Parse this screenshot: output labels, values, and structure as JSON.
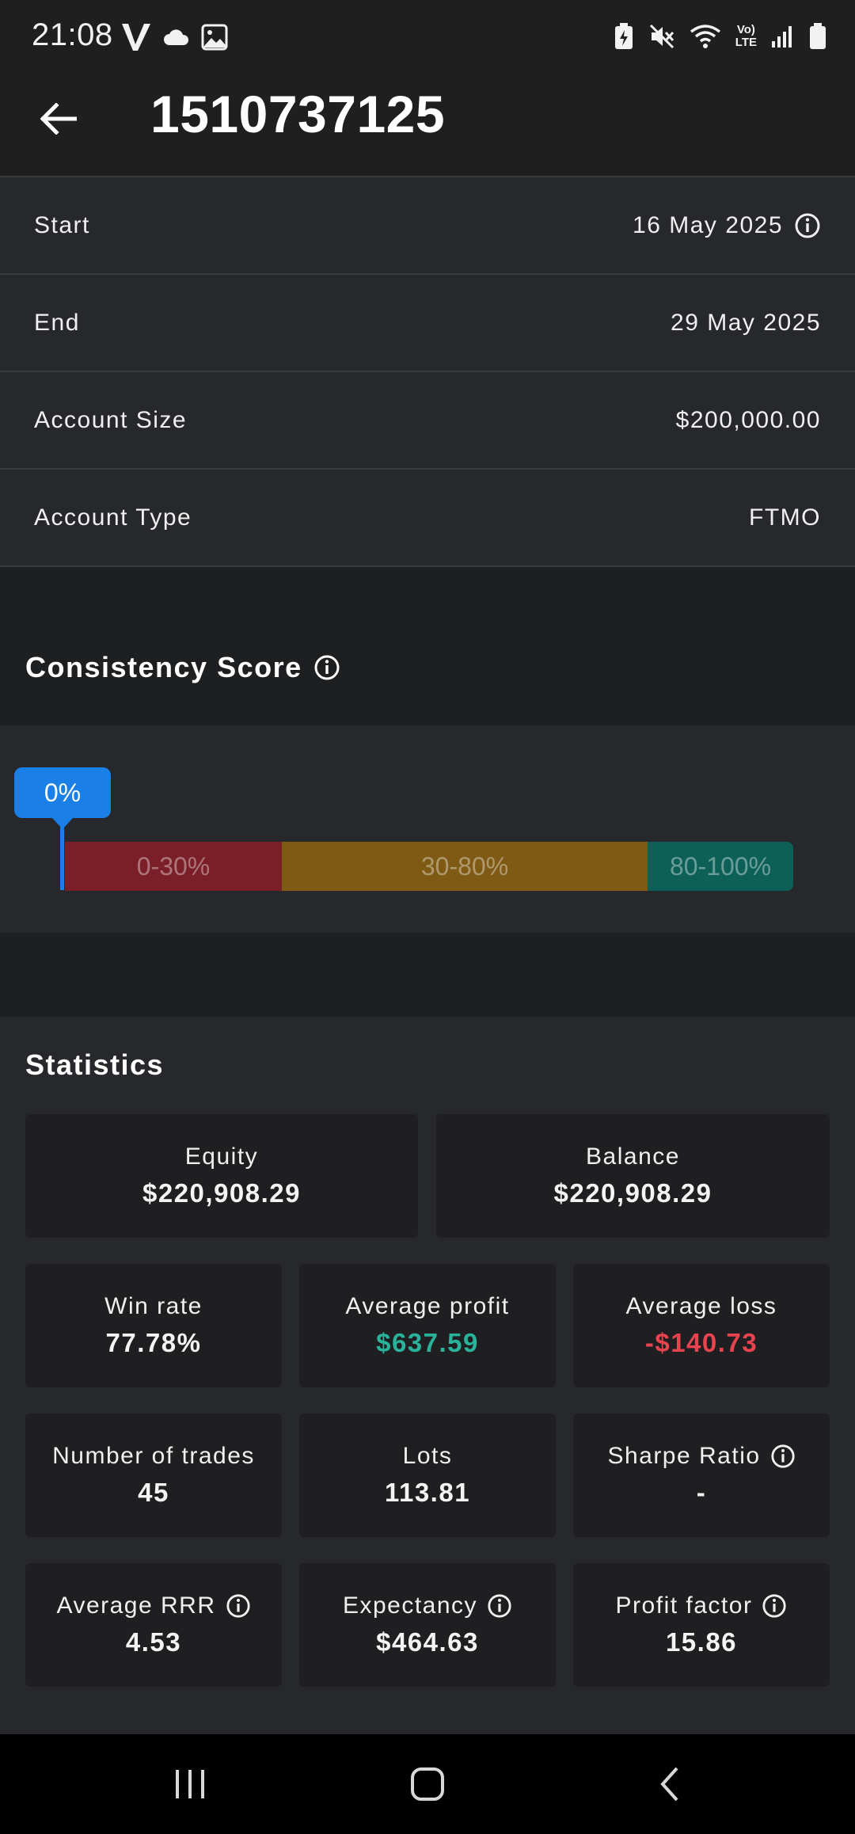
{
  "status_bar": {
    "time": "21:08",
    "volte_top": "Vo)",
    "volte_bottom": "LTE",
    "left_icons": [
      "v-app-icon",
      "cloud-icon",
      "gallery-icon"
    ],
    "right_icons": [
      "battery-saver-icon",
      "mute-icon",
      "wifi-icon",
      "volte-icon",
      "signal-icon",
      "battery-icon"
    ]
  },
  "app_bar": {
    "title": "1510737125"
  },
  "info": {
    "start_label": "Start",
    "start_value": "16 May 2025",
    "end_label": "End",
    "end_value": "29 May 2025",
    "size_label": "Account Size",
    "size_value": "$200,000.00",
    "type_label": "Account Type",
    "type_value": "FTMO"
  },
  "consistency": {
    "title": "Consistency Score",
    "score_label": "0%",
    "score": 0,
    "segments": [
      "0-30%",
      "30-80%",
      "80-100%"
    ],
    "colors": {
      "marker": "#1a7fe6",
      "low": "#7a1f27",
      "mid": "#7e5a14",
      "high": "#0d6058"
    }
  },
  "statistics": {
    "title": "Statistics",
    "equity_label": "Equity",
    "equity_value": "$220,908.29",
    "balance_label": "Balance",
    "balance_value": "$220,908.29",
    "win_rate_label": "Win rate",
    "win_rate_value": "77.78%",
    "avg_profit_label": "Average profit",
    "avg_profit_value": "$637.59",
    "avg_loss_label": "Average loss",
    "avg_loss_value": "-$140.73",
    "trades_label": "Number of trades",
    "trades_value": "45",
    "lots_label": "Lots",
    "lots_value": "113.81",
    "sharpe_label": "Sharpe Ratio",
    "sharpe_value": "-",
    "rrr_label": "Average RRR",
    "rrr_value": "4.53",
    "expectancy_label": "Expectancy",
    "expectancy_value": "$464.63",
    "profit_factor_label": "Profit factor",
    "profit_factor_value": "15.86",
    "colors": {
      "positive": "#2ab39b",
      "negative": "#e8434f"
    }
  }
}
